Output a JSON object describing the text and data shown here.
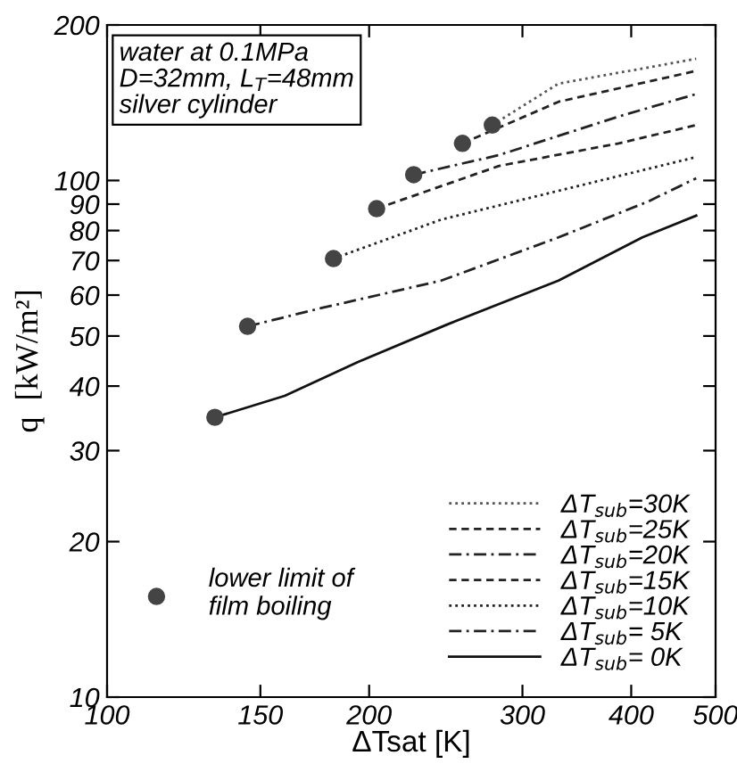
{
  "chart_data": {
    "type": "line",
    "xlabel": "ΔTsat [K]",
    "ylabel": "q  [kW/m²]",
    "log": "xy",
    "xlim": [
      100,
      500
    ],
    "ylim": [
      10,
      200
    ],
    "xticks": [
      100,
      150,
      200,
      300,
      400,
      500
    ],
    "yticks": [
      10,
      20,
      30,
      40,
      50,
      60,
      70,
      80,
      90,
      100,
      200
    ],
    "grid": false,
    "legend": "bottom right",
    "marker": "none",
    "annotations": [
      "water at 0.1MPa\nD=32mm, L$_{T}$=48mm\nsilver cylinder"
    ],
    "series": [
      {
        "name": "ΔT$_{sub}$=30K",
        "color": "#555555",
        "line_style": "dotted",
        "x": [
          277,
          330,
          475
        ],
        "values": [
          128,
          154,
          172
        ]
      },
      {
        "name": "ΔT$_{sub}$=25K",
        "color": "#222222",
        "line_style": "dashed",
        "x": [
          256,
          330,
          475
        ],
        "values": [
          118,
          142,
          163
        ]
      },
      {
        "name": "ΔT$_{sub}$=20K",
        "color": "#222222",
        "line_style": "dashdot",
        "x": [
          225,
          282,
          387,
          475
        ],
        "values": [
          102.6,
          112,
          133,
          147
        ]
      },
      {
        "name": "ΔT$_{sub}$=15K",
        "color": "#222222",
        "line_style": "dashed",
        "x": [
          204,
          282,
          387,
          475
        ],
        "values": [
          88.2,
          106.7,
          118,
          128
        ]
      },
      {
        "name": "ΔT$_{sub}$=10K",
        "color": "#222222",
        "line_style": "dotted",
        "x": [
          182,
          242,
          330,
          475
        ],
        "values": [
          70.6,
          84,
          95.5,
          111
        ]
      },
      {
        "name": "ΔT$_{sub}$= 5K",
        "color": "#222222",
        "line_style": "dashdot",
        "x": [
          145,
          176,
          242,
          330,
          418,
          475
        ],
        "values": [
          52.2,
          56.6,
          64,
          77.6,
          91,
          101
        ]
      },
      {
        "name": "ΔT$_{sub}$= 0K",
        "color": "#111111",
        "line_style": "solid",
        "x": [
          133,
          160,
          194,
          245,
          330,
          412,
          475
        ],
        "values": [
          34.8,
          38.3,
          44.5,
          52.5,
          64,
          77.6,
          85.5
        ]
      },
      {
        "name": "lower limit of\nfilm boiling",
        "type": "scatter",
        "marker": "circle",
        "color": "#444444",
        "x": [
          133,
          145,
          182,
          204,
          225,
          256,
          277
        ],
        "values": [
          34.8,
          52.2,
          70.6,
          88.2,
          102.6,
          118,
          128
        ]
      }
    ]
  }
}
